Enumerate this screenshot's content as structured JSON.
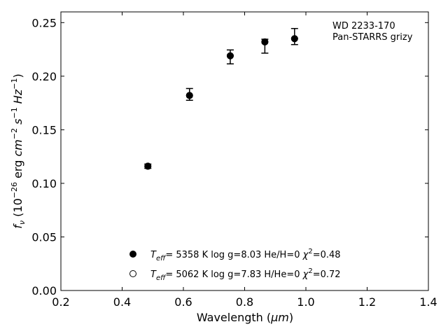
{
  "chart_data": {
    "type": "scatter",
    "xlabel_main": "Wavelength (",
    "xlabel_unit": "μm",
    "xlabel_close": ")",
    "ylabel": "f_ν (10^−26 erg cm^−2 s^−1 Hz^−1)",
    "xlim": [
      0.2,
      1.4
    ],
    "ylim": [
      0.0,
      0.26
    ],
    "xticks": [
      0.2,
      0.4,
      0.6,
      0.8,
      1.0,
      1.2,
      1.4
    ],
    "xtick_labels": [
      "0.2",
      "0.4",
      "0.6",
      "0.8",
      "1.0",
      "1.2",
      "1.4"
    ],
    "yticks": [
      0.0,
      0.05,
      0.1,
      0.15,
      0.2,
      0.25
    ],
    "ytick_labels": [
      "0.00",
      "0.05",
      "0.10",
      "0.15",
      "0.20",
      "0.25"
    ],
    "grid": false,
    "annotation": [
      "WD 2233-170",
      "Pan-STARRS grizy"
    ],
    "observed": {
      "x": [
        0.484,
        0.62,
        0.753,
        0.866,
        0.963
      ],
      "y": [
        0.116,
        0.183,
        0.218,
        0.228,
        0.237
      ],
      "yerr": [
        0.002,
        0.0055,
        0.0065,
        0.0065,
        0.0075
      ]
    },
    "series": [
      {
        "marker": "filled-circle",
        "teff": "5358 K",
        "logg": "log g=8.03",
        "comp": "He/H=0",
        "chi2": "=0.48",
        "x": [
          0.484,
          0.62,
          0.753,
          0.866,
          0.963
        ],
        "y": [
          0.116,
          0.182,
          0.219,
          0.232,
          0.235
        ]
      },
      {
        "marker": "open-circle",
        "teff": "5062 K",
        "logg": "log g=7.83",
        "comp": "H/He=0",
        "chi2": "=0.72",
        "x": [
          0.484,
          0.62,
          0.753,
          0.866,
          0.963
        ],
        "y": [
          0.116,
          0.182,
          0.219,
          0.232,
          0.235
        ]
      }
    ]
  }
}
